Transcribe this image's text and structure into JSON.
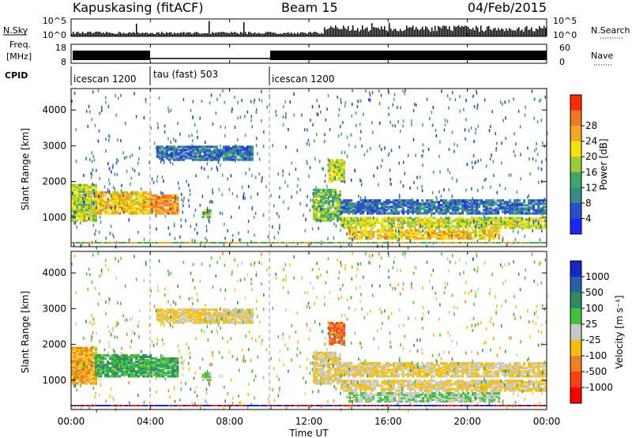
{
  "header": {
    "station": "Kapuskasing (fitACF)",
    "beam": "Beam 15",
    "date": "04/Feb/2015"
  },
  "strip_panels": {
    "nsky_label": "N.Sky",
    "nsky_ticks": [
      "10^5",
      "10^0"
    ],
    "nsearch_label": "N.Search",
    "nsearch_ticks": [
      "10^5",
      "10^0"
    ],
    "freq_label": "Freq.",
    "freq_unit": "[MHz]",
    "freq_ticks": [
      "18",
      "8"
    ],
    "nave_label": "Nave",
    "nave_ticks": [
      "60",
      "0"
    ],
    "cpid_label": "CPID",
    "cpid_segments": [
      {
        "label": "icescan 1200",
        "start_hour": 0,
        "end_hour": 4
      },
      {
        "label": "tau (fast) 503",
        "start_hour": 4,
        "end_hour": 10
      },
      {
        "label": "icescan 1200",
        "start_hour": 10,
        "end_hour": 24
      }
    ]
  },
  "axes": {
    "ylabel": "Slant Range [km]",
    "yticks": [
      "1000",
      "2000",
      "3000",
      "4000"
    ],
    "xlabel": "Time UT",
    "xticks": [
      "00:00",
      "04:00",
      "08:00",
      "12:00",
      "16:00",
      "20:00",
      "00:00"
    ]
  },
  "power_colorbar": {
    "label": "Power [dB]",
    "ticks": [
      "4",
      "8",
      "12",
      "16",
      "20",
      "24",
      "28"
    ],
    "colors": [
      "#1428ff",
      "#2a4fc8",
      "#3a8a8a",
      "#3aa86a",
      "#9acd32",
      "#f2e400",
      "#f5a623",
      "#f07820",
      "#ff2a00"
    ]
  },
  "velocity_colorbar": {
    "label": "Velocity [m s⁻¹]",
    "ticks": [
      "1000",
      "500",
      "100",
      "25",
      "-25",
      "-100",
      "-500",
      "-1000"
    ],
    "colors": [
      "#1428c8",
      "#2a5fb0",
      "#2f8a5f",
      "#3fc23f",
      "#c8c8c8",
      "#f5c000",
      "#f08020",
      "#ff4010",
      "#ff0000"
    ]
  },
  "chart_data": {
    "type": "heatmap",
    "title": "Kapuskasing (fitACF) Beam 15 04/Feb/2015",
    "xlabel": "Time UT",
    "ylabel": "Slant Range [km]",
    "x_range_hours": [
      0,
      24
    ],
    "y_range_km": [
      180,
      4600
    ],
    "grid": false,
    "echo_regions": [
      {
        "t0": 0.0,
        "t1": 1.2,
        "r0": 900,
        "r1": 1900,
        "power": 20,
        "velocity": -100
      },
      {
        "t0": 1.2,
        "t1": 4.0,
        "r0": 1100,
        "r1": 1700,
        "power": 24,
        "velocity": 100
      },
      {
        "t0": 4.0,
        "t1": 5.4,
        "r0": 1100,
        "r1": 1600,
        "power": 28,
        "velocity": 100
      },
      {
        "t0": 4.3,
        "t1": 9.2,
        "r0": 2600,
        "r1": 3000,
        "power": 8,
        "velocity": -25
      },
      {
        "t0": 6.6,
        "t1": 7.0,
        "r0": 1000,
        "r1": 1200,
        "power": 16,
        "velocity": 25
      },
      {
        "t0": 12.2,
        "t1": 13.6,
        "r0": 900,
        "r1": 1800,
        "power": 16,
        "velocity": -25
      },
      {
        "t0": 13.0,
        "t1": 13.8,
        "r0": 2000,
        "r1": 2600,
        "power": 20,
        "velocity": -500
      },
      {
        "t0": 13.6,
        "t1": 24.0,
        "r0": 1100,
        "r1": 1500,
        "power": 8,
        "velocity": -25
      },
      {
        "t0": 13.6,
        "t1": 24.0,
        "r0": 700,
        "r1": 1000,
        "power": 20,
        "velocity": -25
      },
      {
        "t0": 14.0,
        "t1": 21.6,
        "r0": 400,
        "r1": 650,
        "power": 24,
        "velocity": 25
      }
    ]
  }
}
